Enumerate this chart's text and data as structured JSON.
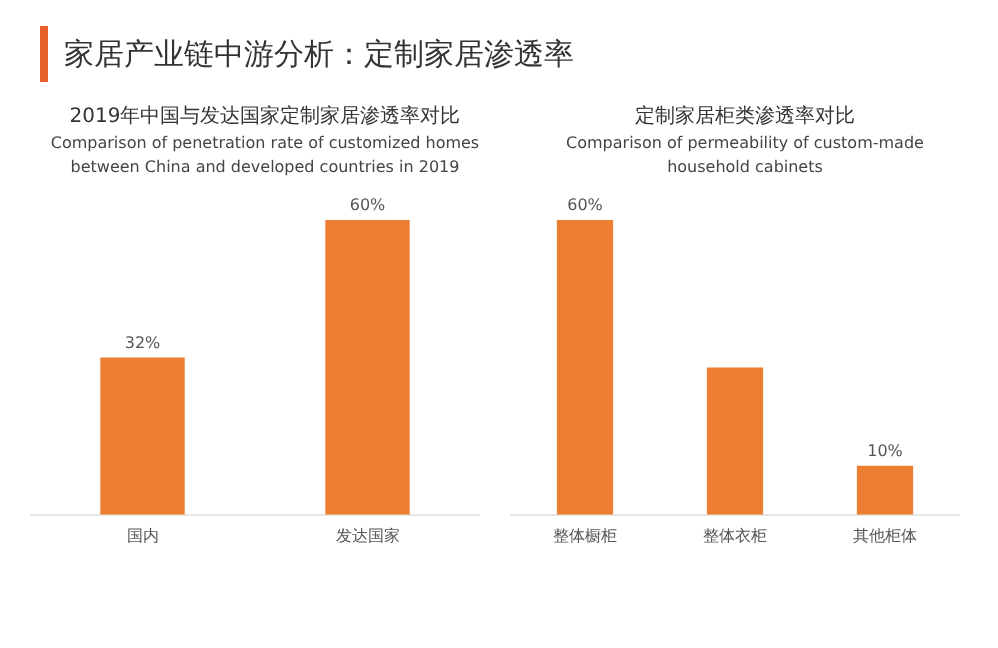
{
  "chart_data": [
    {
      "type": "bar",
      "title": "2019年中国与发达国家定制家居渗透率对比",
      "subtitle": "Comparison of penetration rate of customized homes between China and developed countries in 2019",
      "annotations": [
        "家居产业链中游分析：定制家居渗透率"
      ],
      "categories": [
        "国内",
        "发达国家"
      ],
      "values": [
        32,
        60
      ],
      "color": "#ed7d31",
      "value_labels": [
        "32%",
        "60%"
      ],
      "grid": false,
      "legend": false
    },
    {
      "type": "bar",
      "title": "定制家居柜类渗透率对比",
      "subtitle": "Comparison of permeability of custom-made household cabinets",
      "categories": [
        "整体橱柜",
        "整体衣柜",
        "其他柜体"
      ],
      "values": [
        60,
        30,
        10
      ],
      "color": "#ed7d31",
      "value_labels": [
        "60%",
        null,
        "10%"
      ],
      "grid": false,
      "legend": false
    }
  ]
}
